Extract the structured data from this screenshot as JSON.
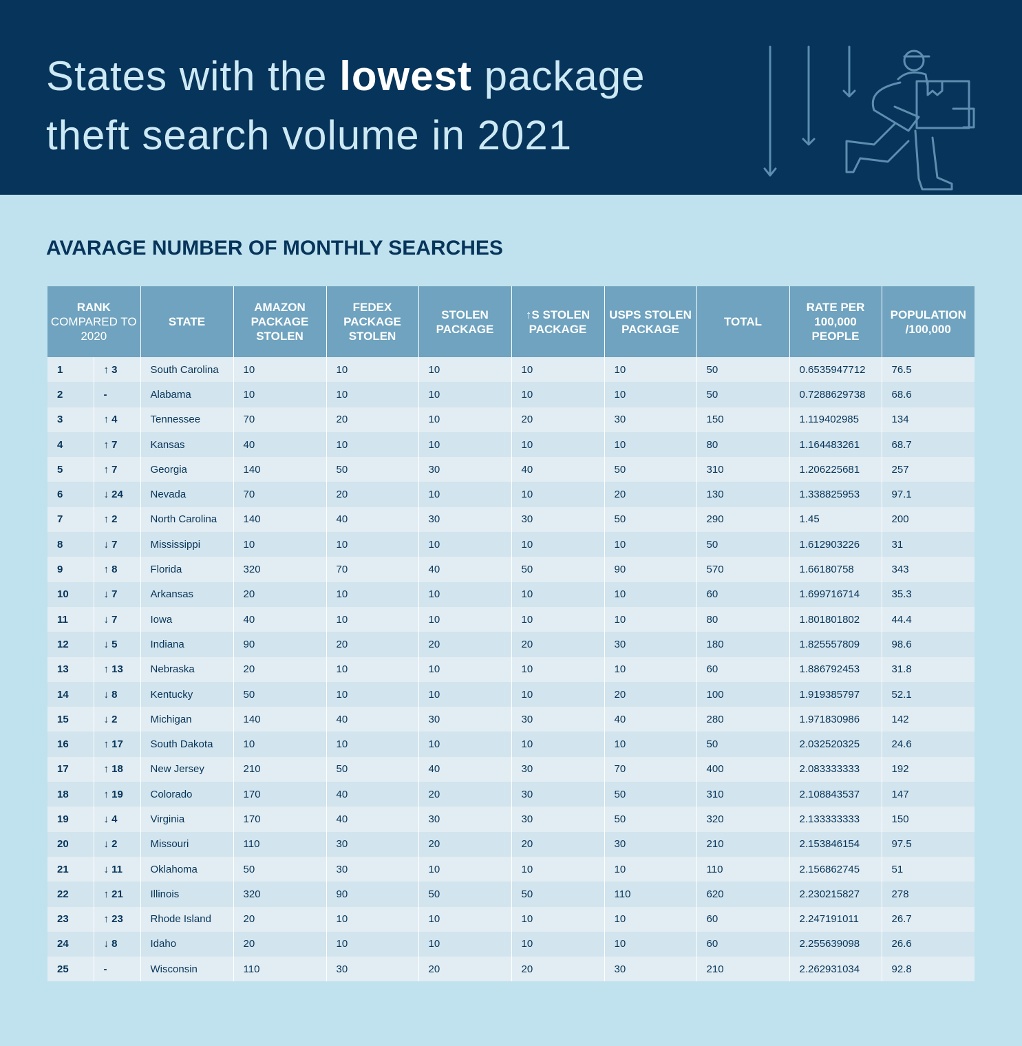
{
  "header": {
    "title": {
      "line1_before": "States with the",
      "line1_bold": "lowest",
      "line1_after": "package",
      "line2": "theft search volume in 2021"
    }
  },
  "subtitle": "AVARAGE NUMBER OF MONTHLY SEARCHES",
  "table": {
    "columns": [
      {
        "bold": "RANK",
        "light": "COMPARED TO 2020"
      },
      "STATE",
      "AMAZON PACKAGE STOLEN",
      "FEDEX PACKAGE STOLEN",
      "STOLEN PACKAGE",
      "↑S STOLEN PACKAGE",
      "USPS STOLEN PACKAGE",
      "TOTAL",
      "RATE PER 100,000 PEOPLE",
      "POPULATION /100,000"
    ],
    "rows": [
      [
        1,
        "↑ 3",
        "South Carolina",
        10,
        10,
        10,
        10,
        10,
        50,
        0.6535947712,
        76.5
      ],
      [
        2,
        "-",
        "Alabama",
        10,
        10,
        10,
        10,
        10,
        50,
        0.7288629738,
        68.6
      ],
      [
        3,
        "↑ 4",
        "Tennessee",
        70,
        20,
        10,
        20,
        30,
        150,
        1.119402985,
        134
      ],
      [
        4,
        "↑ 7",
        "Kansas",
        40,
        10,
        10,
        10,
        10,
        80,
        1.164483261,
        68.7
      ],
      [
        5,
        "↑ 7",
        "Georgia",
        140,
        50,
        30,
        40,
        50,
        310,
        1.206225681,
        257
      ],
      [
        6,
        "↓ 24",
        "Nevada",
        70,
        20,
        10,
        10,
        20,
        130,
        1.338825953,
        97.1
      ],
      [
        7,
        "↑ 2",
        "North Carolina",
        140,
        40,
        30,
        30,
        50,
        290,
        1.45,
        200
      ],
      [
        8,
        "↓ 7",
        "Mississippi",
        10,
        10,
        10,
        10,
        10,
        50,
        1.612903226,
        31
      ],
      [
        9,
        "↑ 8",
        "Florida",
        320,
        70,
        40,
        50,
        90,
        570,
        1.66180758,
        343
      ],
      [
        10,
        "↓ 7",
        "Arkansas",
        20,
        10,
        10,
        10,
        10,
        60,
        1.699716714,
        35.3
      ],
      [
        11,
        "↓ 7",
        "Iowa",
        40,
        10,
        10,
        10,
        10,
        80,
        1.801801802,
        44.4
      ],
      [
        12,
        "↓ 5",
        "Indiana",
        90,
        20,
        20,
        20,
        30,
        180,
        1.825557809,
        98.6
      ],
      [
        13,
        "↑ 13",
        "Nebraska",
        20,
        10,
        10,
        10,
        10,
        60,
        1.886792453,
        31.8
      ],
      [
        14,
        "↓ 8",
        "Kentucky",
        50,
        10,
        10,
        10,
        20,
        100,
        1.919385797,
        52.1
      ],
      [
        15,
        "↓ 2",
        "Michigan",
        140,
        40,
        30,
        30,
        40,
        280,
        1.971830986,
        142
      ],
      [
        16,
        "↑ 17",
        "South Dakota",
        10,
        10,
        10,
        10,
        10,
        50,
        2.032520325,
        24.6
      ],
      [
        17,
        "↑ 18",
        "New Jersey",
        210,
        50,
        40,
        30,
        70,
        400,
        2.083333333,
        192
      ],
      [
        18,
        "↑ 19",
        "Colorado",
        170,
        40,
        20,
        30,
        50,
        310,
        2.108843537,
        147
      ],
      [
        19,
        "↓ 4",
        "Virginia",
        170,
        40,
        30,
        30,
        50,
        320,
        2.133333333,
        150
      ],
      [
        20,
        "↓ 2",
        "Missouri",
        110,
        30,
        20,
        20,
        30,
        210,
        2.153846154,
        97.5
      ],
      [
        21,
        "↓ 11",
        "Oklahoma",
        50,
        30,
        10,
        10,
        10,
        110,
        2.156862745,
        51
      ],
      [
        22,
        "↑ 21",
        "Illinois",
        320,
        90,
        50,
        50,
        110,
        620,
        2.230215827,
        278
      ],
      [
        23,
        "↑ 23",
        "Rhode Island",
        20,
        10,
        10,
        10,
        10,
        60,
        2.247191011,
        26.7
      ],
      [
        24,
        "↓ 8",
        "Idaho",
        20,
        10,
        10,
        10,
        10,
        60,
        2.255639098,
        26.6
      ],
      [
        25,
        "-",
        "Wisconsin",
        110,
        30,
        20,
        20,
        30,
        210,
        2.262931034,
        92.8
      ]
    ]
  }
}
